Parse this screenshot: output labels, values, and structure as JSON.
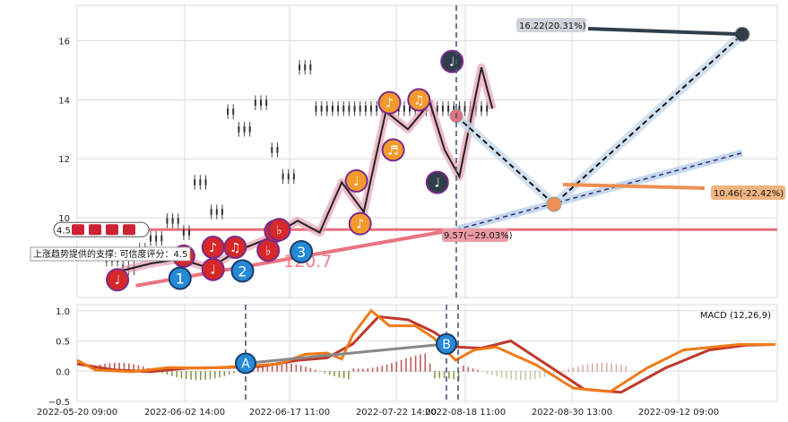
{
  "chart_data": [
    {
      "type": "candlestick",
      "title": "",
      "ylim": [
        7.3,
        17.2
      ],
      "yticks": [
        10,
        12,
        14,
        16
      ],
      "x_dates": [
        "2022-05-20 09:00",
        "2022-06-02 14:00",
        "2022-06-17 11:00",
        "2022-07-22 14:00",
        "2022-08-18 11:00",
        "2022-08-30 13:00",
        "2022-09-12 09:00"
      ],
      "price_path": [
        {
          "x": 12,
          "y": 8.2
        },
        {
          "x": 20,
          "y": 8.45
        },
        {
          "x": 28,
          "y": 8.6
        },
        {
          "x": 36,
          "y": 8.3
        },
        {
          "x": 44,
          "y": 8.9
        },
        {
          "x": 52,
          "y": 9.3
        },
        {
          "x": 60,
          "y": 9.9
        },
        {
          "x": 66,
          "y": 9.5
        },
        {
          "x": 72,
          "y": 11.2
        },
        {
          "x": 78,
          "y": 10.2
        },
        {
          "x": 84,
          "y": 13.6
        },
        {
          "x": 90,
          "y": 13.0
        },
        {
          "x": 96,
          "y": 13.9
        },
        {
          "x": 100,
          "y": 12.3
        },
        {
          "x": 104,
          "y": 11.4
        },
        {
          "x": 110,
          "y": 15.1
        },
        {
          "x": 113,
          "y": 13.7
        }
      ],
      "support_line_label": "上涨趋势提供的支撑: 可信度评分：4.5",
      "support_line_value": "120.7",
      "resistance_value": 9.6,
      "resistance_badge": "4.5",
      "annotations": [
        {
          "label": "16.22(20.31%)",
          "value": 16.22
        },
        {
          "label": "10.46(-22.42%)",
          "value": 10.46
        },
        {
          "label": "9.57(−29.03%)",
          "value": 9.57
        }
      ],
      "pattern_markers": [
        {
          "id": "1",
          "x": 28,
          "value": 7.95
        },
        {
          "id": "2",
          "x": 45,
          "value": 8.2
        },
        {
          "id": "3",
          "x": 61,
          "value": 8.85
        }
      ],
      "forecast_points": [
        {
          "x": 113,
          "value": 13.45
        },
        {
          "x": 130,
          "value": 10.46
        },
        {
          "x": 160,
          "value": 16.22
        }
      ]
    },
    {
      "type": "line+bar",
      "title": "MACD (12,26,9)",
      "ylim": [
        -0.5,
        1.1
      ],
      "yticks": [
        -0.5,
        0.0,
        0.5,
        1.0
      ],
      "ytick_labels": [
        "−0.5",
        "0.0",
        "0.5",
        "1.0"
      ],
      "macd_line": [
        [
          0,
          0.18
        ],
        [
          5,
          0.02
        ],
        [
          15,
          -0.01
        ],
        [
          25,
          0.06
        ],
        [
          35,
          0.05
        ],
        [
          45,
          0.08
        ],
        [
          55,
          0.12
        ],
        [
          62,
          0.28
        ],
        [
          68,
          0.3
        ],
        [
          72,
          0.2
        ],
        [
          75,
          0.6
        ],
        [
          80,
          1.0
        ],
        [
          85,
          0.75
        ],
        [
          92,
          0.75
        ],
        [
          97,
          0.55
        ],
        [
          103,
          0.18
        ],
        [
          108,
          0.35
        ],
        [
          114,
          0.4
        ],
        [
          125,
          0.1
        ],
        [
          135,
          -0.28
        ],
        [
          145,
          -0.34
        ],
        [
          155,
          0.05
        ],
        [
          165,
          0.35
        ],
        [
          180,
          0.44
        ],
        [
          190,
          0.44
        ]
      ],
      "signal_line": [
        [
          0,
          0.12
        ],
        [
          10,
          0.02
        ],
        [
          20,
          -0.01
        ],
        [
          30,
          0.05
        ],
        [
          40,
          0.06
        ],
        [
          50,
          0.08
        ],
        [
          60,
          0.18
        ],
        [
          68,
          0.22
        ],
        [
          75,
          0.45
        ],
        [
          82,
          0.9
        ],
        [
          90,
          0.85
        ],
        [
          97,
          0.65
        ],
        [
          103,
          0.4
        ],
        [
          110,
          0.38
        ],
        [
          118,
          0.5
        ],
        [
          128,
          0.1
        ],
        [
          138,
          -0.3
        ],
        [
          148,
          -0.35
        ],
        [
          160,
          0.05
        ],
        [
          172,
          0.35
        ],
        [
          182,
          0.43
        ],
        [
          190,
          0.44
        ]
      ],
      "divergence_markers": [
        {
          "id": "A",
          "value": 0.13
        },
        {
          "id": "B",
          "value": 0.45
        }
      ]
    }
  ]
}
